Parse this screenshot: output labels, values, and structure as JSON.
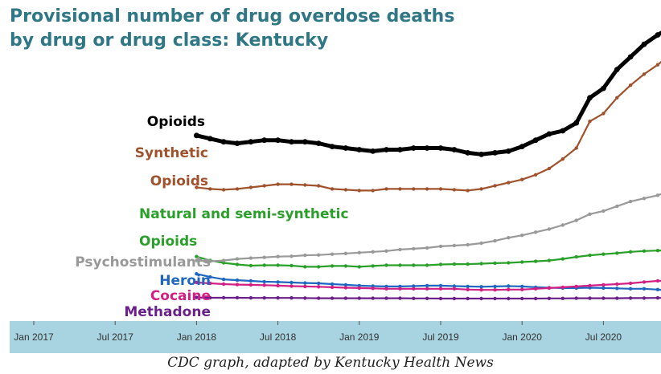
{
  "title_lines": [
    "Provisional number of drug overdose deaths",
    "by drug or drug class: Kentucky"
  ],
  "caption": "CDC graph, adapted by Kentucky Health News",
  "chart_data": {
    "type": "line",
    "title": "Provisional number of drug overdose deaths by drug or drug class: Kentucky",
    "x_ticks": [
      "Jan 2017",
      "Jul 2017",
      "Jan 2018",
      "Jul 2018",
      "Jan 2019",
      "Jul 2019",
      "Jan 2020",
      "Jul 2020"
    ],
    "x": [
      "Jan 2018",
      "Feb 2018",
      "Mar 2018",
      "Apr 2018",
      "May 2018",
      "Jun 2018",
      "Jul 2018",
      "Aug 2018",
      "Sep 2018",
      "Oct 2018",
      "Nov 2018",
      "Dec 2018",
      "Jan 2019",
      "Feb 2019",
      "Mar 2019",
      "Apr 2019",
      "May 2019",
      "Jun 2019",
      "Jul 2019",
      "Aug 2019",
      "Sep 2019",
      "Oct 2019",
      "Nov 2019",
      "Dec 2019",
      "Jan 2020",
      "Feb 2020",
      "Mar 2020",
      "Apr 2020",
      "May 2020",
      "Jun 2020",
      "Jul 2020",
      "Aug 2020",
      "Sep 2020",
      "Oct 2020",
      "Nov 2020",
      "Dec 2020"
    ],
    "grid": false,
    "background_band_color": "#a8d3e0",
    "series": [
      {
        "name": "Opioids",
        "color": "#000000",
        "values": [
          1180,
          1160,
          1140,
          1130,
          1140,
          1150,
          1150,
          1140,
          1140,
          1130,
          1110,
          1100,
          1090,
          1080,
          1090,
          1090,
          1100,
          1100,
          1100,
          1090,
          1070,
          1060,
          1070,
          1080,
          1110,
          1150,
          1190,
          1210,
          1260,
          1420,
          1480,
          1600,
          1680,
          1760,
          1820,
          1870
        ]
      },
      {
        "name": "Synthetic Opioids",
        "color": "#a0522d",
        "values": [
          850,
          840,
          835,
          840,
          850,
          860,
          870,
          870,
          865,
          860,
          840,
          835,
          830,
          830,
          840,
          840,
          840,
          840,
          840,
          835,
          830,
          840,
          860,
          880,
          900,
          930,
          970,
          1030,
          1100,
          1270,
          1320,
          1420,
          1500,
          1570,
          1630,
          1700
        ]
      },
      {
        "name": "Natural and semi-synthetic Opioids",
        "color": "#2aa02a",
        "values": [
          410,
          385,
          370,
          360,
          352,
          355,
          355,
          352,
          345,
          345,
          350,
          350,
          345,
          350,
          355,
          355,
          355,
          355,
          360,
          362,
          362,
          365,
          368,
          370,
          375,
          380,
          385,
          395,
          408,
          418,
          425,
          432,
          440,
          445,
          448,
          450
        ]
      },
      {
        "name": "Psychostimulants",
        "color": "#999999",
        "values": [
          385,
          380,
          385,
          395,
          400,
          405,
          410,
          412,
          418,
          420,
          425,
          430,
          435,
          440,
          445,
          455,
          460,
          465,
          475,
          480,
          485,
          495,
          510,
          530,
          545,
          565,
          585,
          610,
          640,
          680,
          700,
          730,
          760,
          780,
          800,
          830
        ]
      },
      {
        "name": "Heroin",
        "color": "#1f66c1",
        "values": [
          300,
          280,
          265,
          260,
          255,
          250,
          248,
          245,
          242,
          240,
          235,
          230,
          225,
          222,
          220,
          220,
          222,
          225,
          225,
          222,
          220,
          218,
          220,
          222,
          220,
          215,
          212,
          210,
          210,
          212,
          210,
          208,
          205,
          205,
          200,
          190
        ]
      },
      {
        "name": "Cocaine",
        "color": "#d21f84",
        "values": [
          245,
          240,
          235,
          232,
          230,
          228,
          225,
          222,
          220,
          218,
          215,
          212,
          210,
          208,
          205,
          205,
          205,
          205,
          205,
          205,
          200,
          198,
          198,
          200,
          200,
          205,
          210,
          215,
          220,
          225,
          230,
          235,
          240,
          248,
          255,
          255
        ]
      },
      {
        "name": "Methadone",
        "color": "#6a1f8a",
        "values": [
          150,
          148,
          148,
          148,
          147,
          147,
          147,
          147,
          146,
          145,
          145,
          145,
          145,
          145,
          145,
          145,
          144,
          144,
          143,
          143,
          143,
          143,
          143,
          143,
          143,
          143,
          144,
          144,
          145,
          145,
          145,
          145,
          146,
          146,
          147,
          147
        ]
      }
    ],
    "annotations": [
      {
        "series": "Opioids",
        "lines": [
          "Opioids"
        ]
      },
      {
        "series": "Synthetic Opioids",
        "lines": [
          "Synthetic",
          "Opioids"
        ]
      },
      {
        "series": "Natural and semi-synthetic Opioids",
        "lines": [
          "Natural and semi-synthetic",
          "Opioids"
        ]
      },
      {
        "series": "Psychostimulants",
        "lines": [
          "Psychostimulants"
        ]
      },
      {
        "series": "Heroin",
        "lines": [
          "Heroin"
        ]
      },
      {
        "series": "Cocaine",
        "lines": [
          "Cocaine"
        ]
      },
      {
        "series": "Methadone",
        "lines": [
          "Methadone"
        ]
      }
    ]
  }
}
